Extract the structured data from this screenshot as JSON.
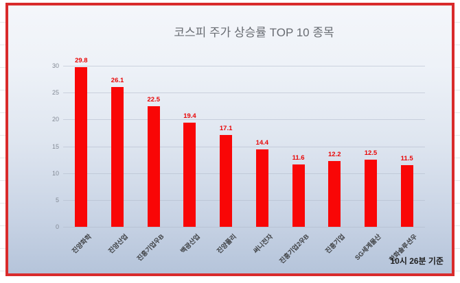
{
  "frame": {
    "border_color": "#d92b2b"
  },
  "chart_data": {
    "type": "bar",
    "title": "코스피 주가 상승률 TOP 10 종목",
    "categories": [
      "진양화학",
      "진양산업",
      "진흥기업우B",
      "백광산업",
      "진양폴리",
      "써니전자",
      "진흥기업2우B",
      "진흥기업",
      "SG세계물산",
      "한화솔루션우"
    ],
    "values": [
      29.8,
      26.1,
      22.5,
      19.4,
      17.1,
      14.4,
      11.6,
      12.2,
      12.5,
      11.5
    ],
    "bar_color": "#f90606",
    "value_label_color": "#e90404",
    "xlabel": "",
    "ylabel": "",
    "ylim": [
      0,
      30
    ],
    "yticks": [
      0,
      5,
      10,
      15,
      20,
      25,
      30
    ],
    "grid": true,
    "legend": "none"
  },
  "footnote": "10시 26분 기준"
}
